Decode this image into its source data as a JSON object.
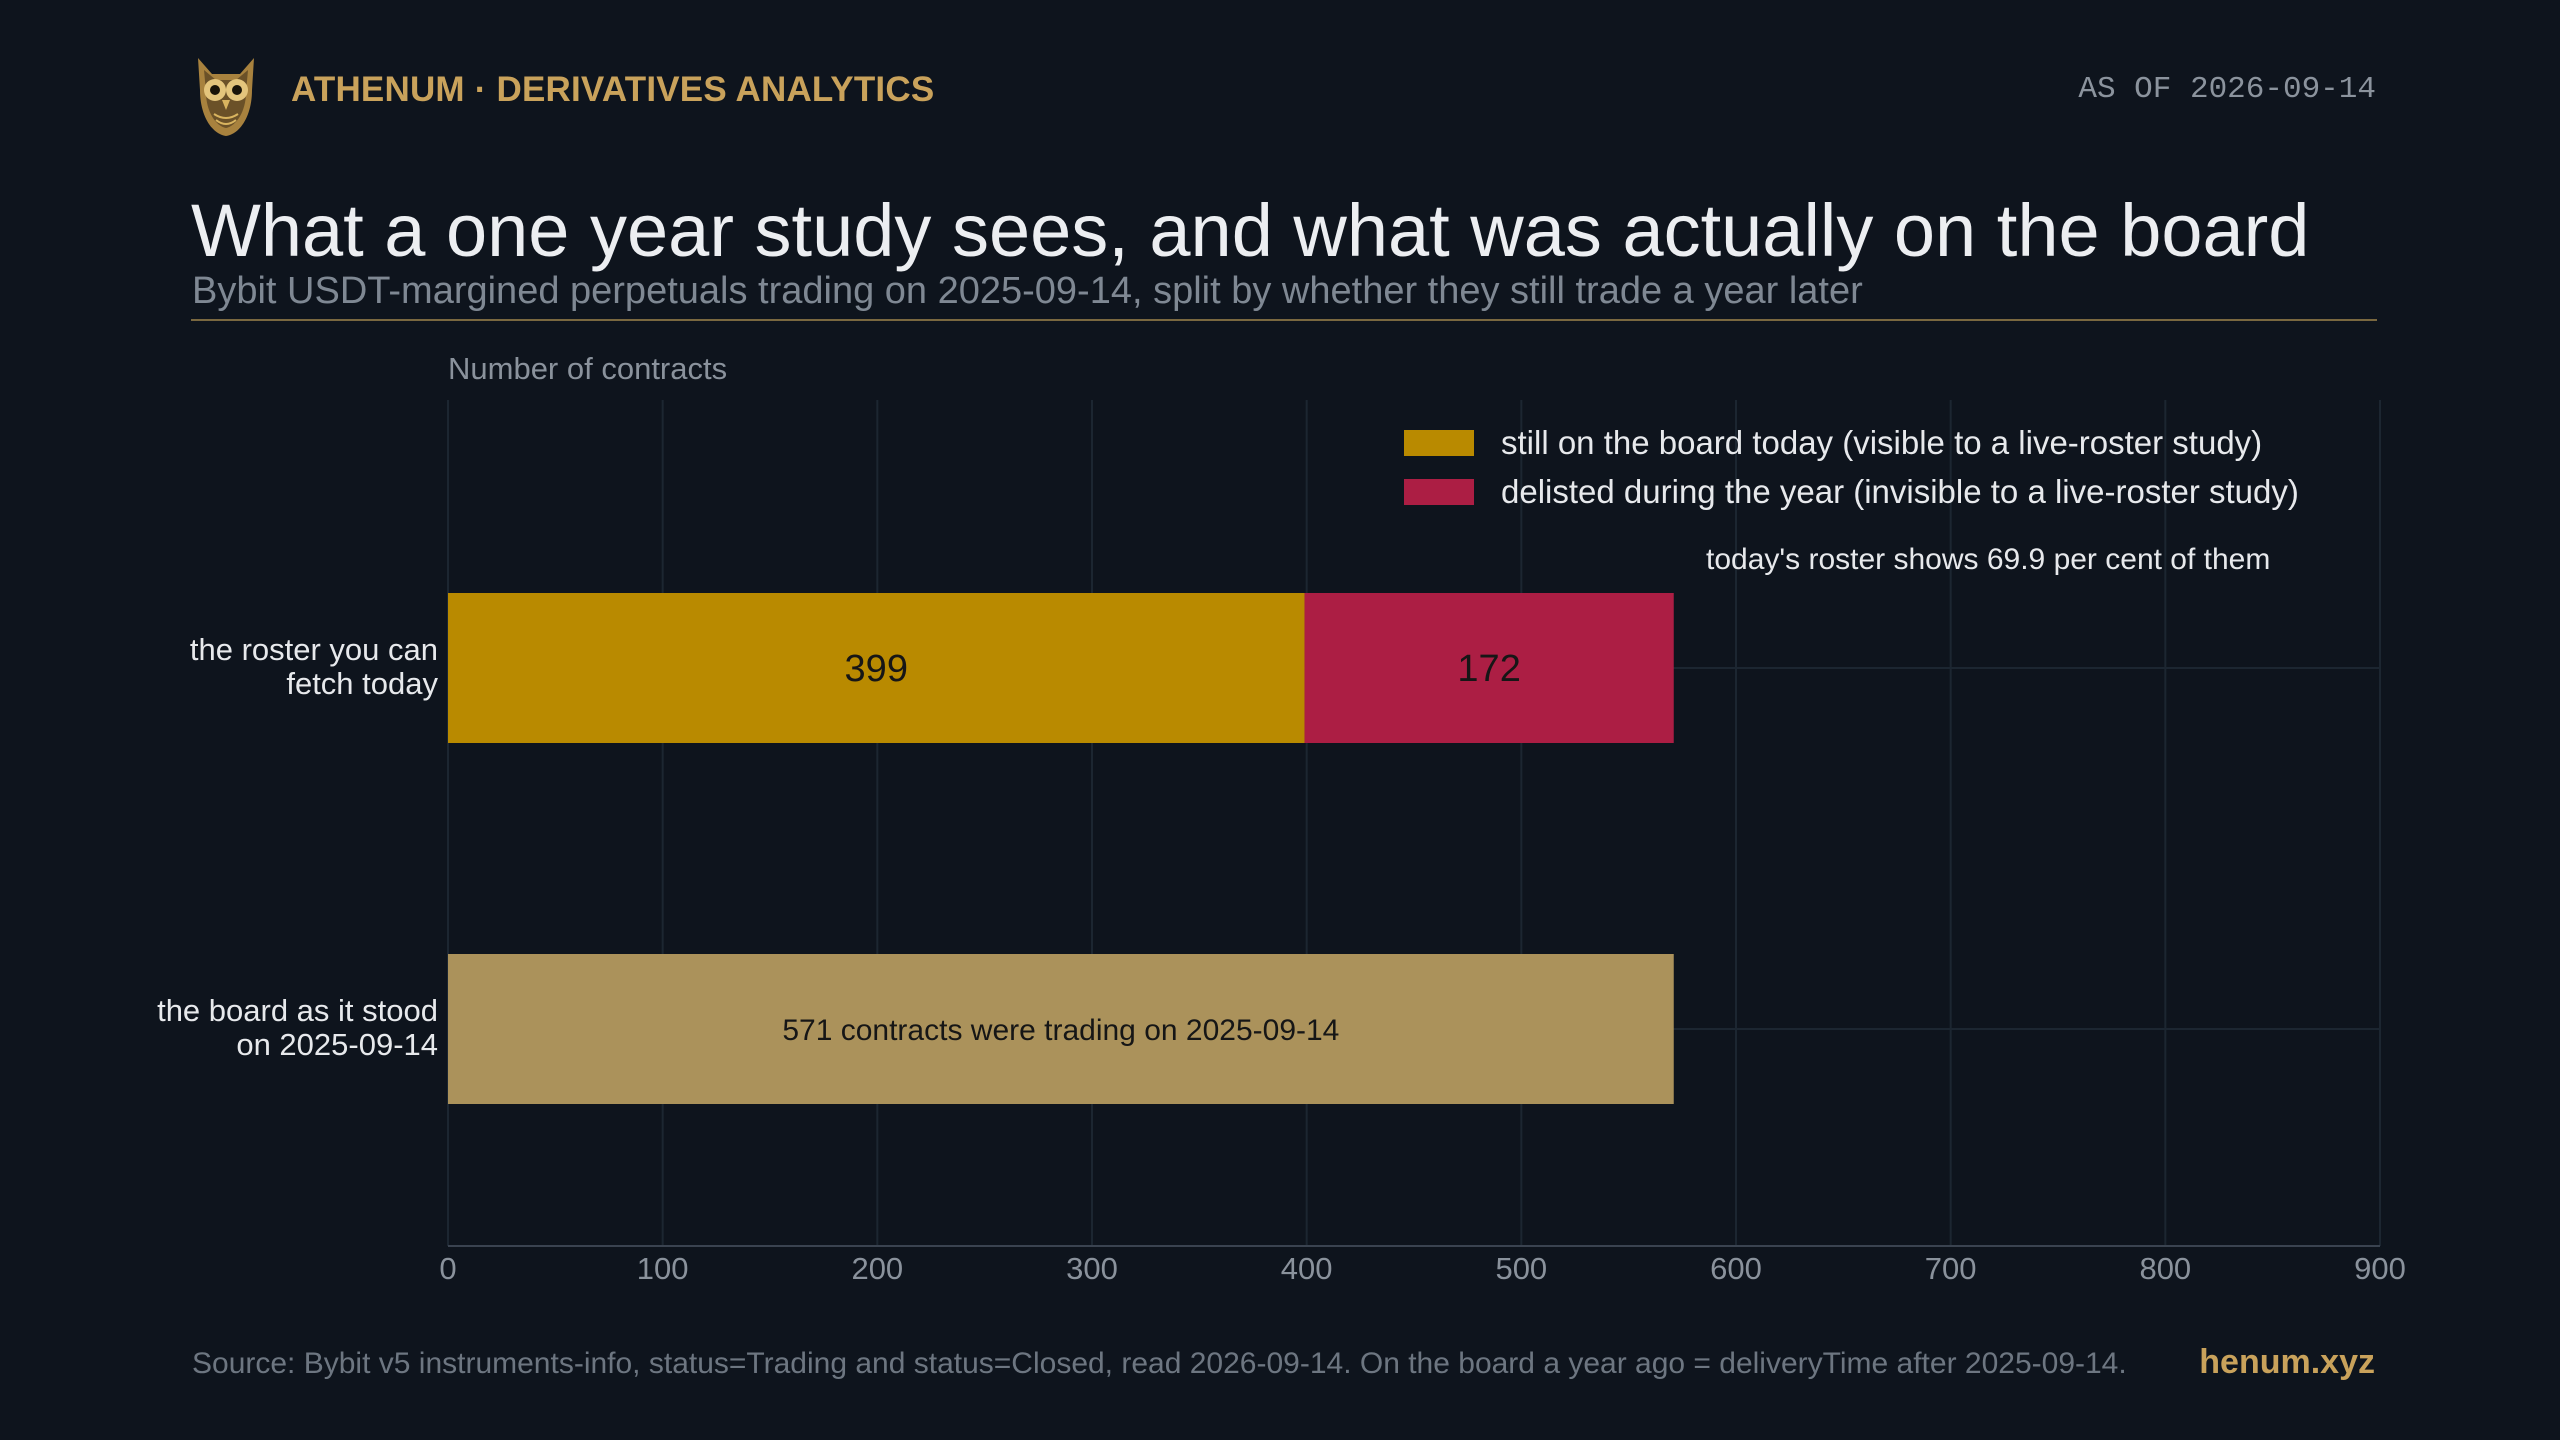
{
  "header": {
    "brand": "ATHENUM · DERIVATIVES ANALYTICS",
    "logo_icon": "owl-icon",
    "as_of": "AS OF 2026-09-14"
  },
  "title": "What a one year study sees, and what was actually on the board",
  "subtitle": "Bybit USDT-margined perpetuals trading on 2025-09-14, split by whether they still trade a year later",
  "footer": {
    "source": "Source: Bybit v5 instruments-info, status=Trading and status=Closed, read 2026-09-14. On the board a year ago = deliveryTime after 2025-09-14.",
    "site": "henum.xyz"
  },
  "colors": {
    "background": "#0e141d",
    "accent": "#c9a25b",
    "still_on_board": "#b98a00",
    "delisted": "#ac1e44",
    "full_board": "#ab925b",
    "grid": "#1c2631"
  },
  "chart_data": {
    "type": "bar",
    "orientation": "horizontal",
    "stacked": true,
    "axis_title": "Number of contracts",
    "xlim": [
      0,
      900
    ],
    "xticks": [
      0,
      100,
      200,
      300,
      400,
      500,
      600,
      700,
      800,
      900
    ],
    "grid": true,
    "legend_position": "top-right",
    "categories": [
      [
        "the roster you can",
        "fetch today"
      ],
      [
        "the board as it stood",
        "on 2025-09-14"
      ]
    ],
    "series": [
      {
        "name": "still on the board today (visible to a live-roster study)",
        "color": "#b98a00",
        "values": [
          399,
          null
        ],
        "labels": [
          "399",
          null
        ]
      },
      {
        "name": "delisted during the year (invisible to a live-roster study)",
        "color": "#ac1e44",
        "values": [
          172,
          null
        ],
        "labels": [
          "172",
          null
        ]
      },
      {
        "name": "",
        "color": "#ab925b",
        "values": [
          null,
          571
        ],
        "labels": [
          null,
          "571 contracts were trading on 2025-09-14"
        ]
      }
    ],
    "annotation": "today's roster shows 69.9 per cent of them"
  }
}
